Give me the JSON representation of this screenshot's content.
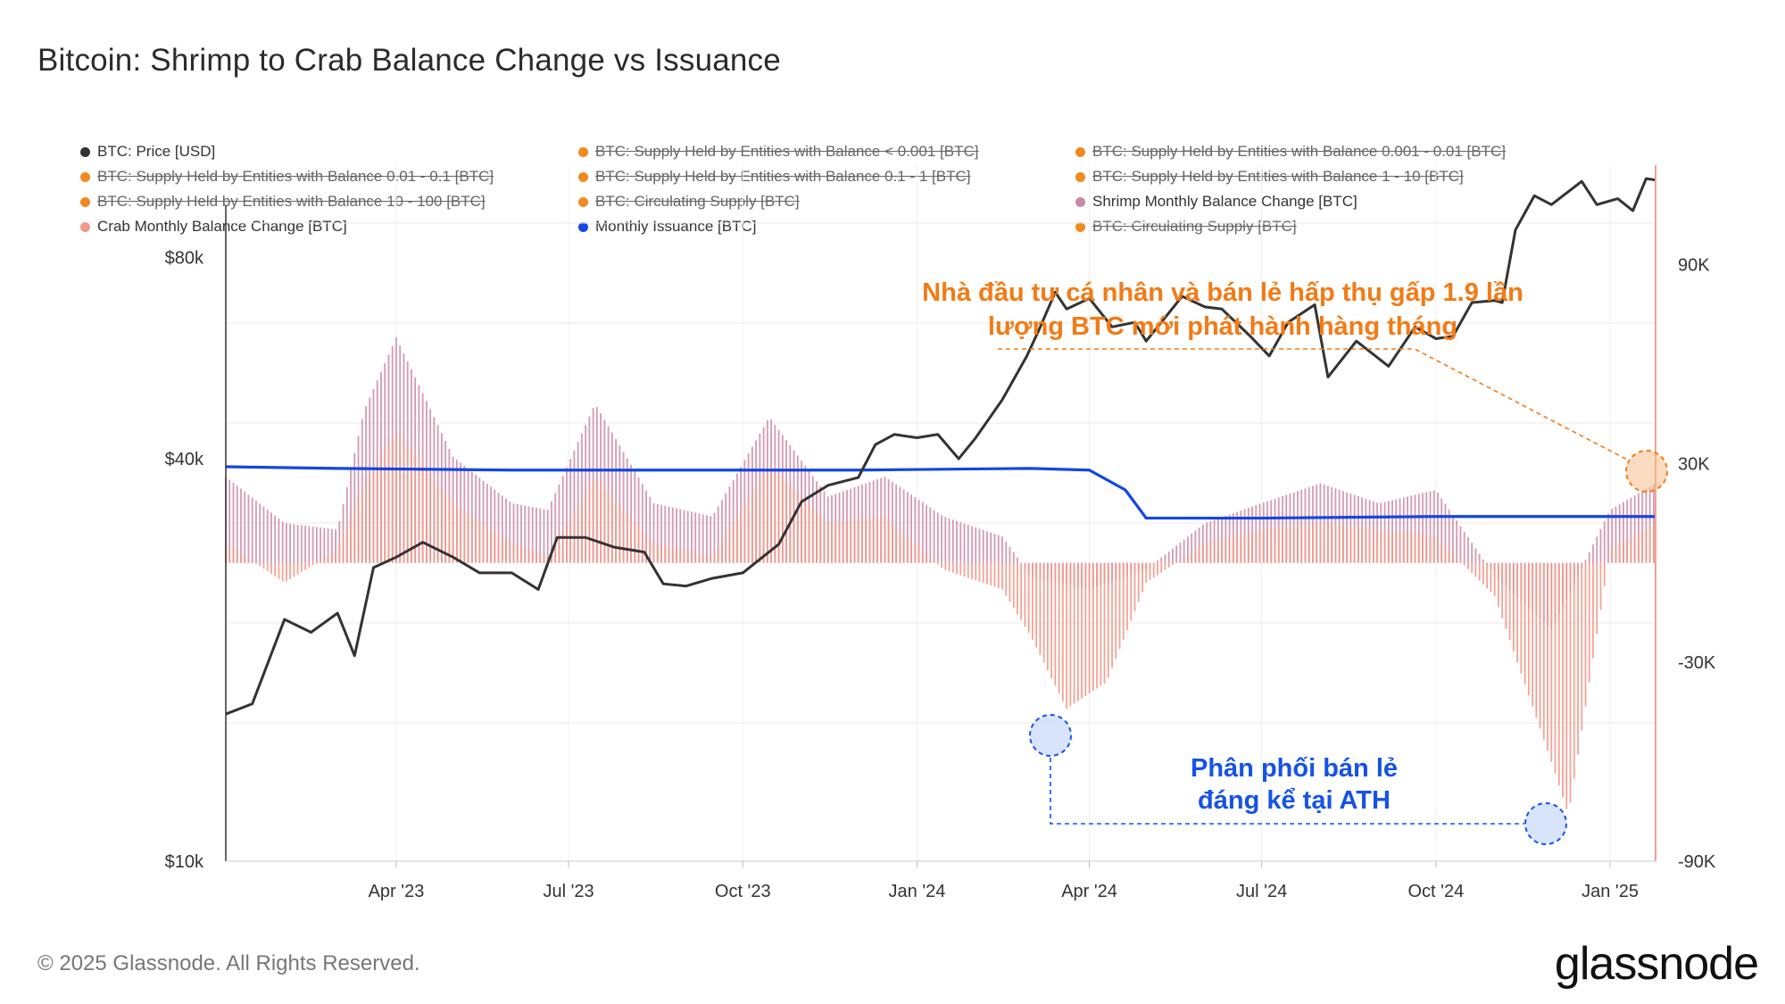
{
  "title": "Bitcoin: Shrimp to Crab Balance Change vs Issuance",
  "footer": {
    "copyright": "© 2025 Glassnode. All Rights Reserved.",
    "brand": "glassnode"
  },
  "legend": [
    {
      "label": "BTC: Price [USD]",
      "color": "#333333",
      "enabled": true
    },
    {
      "label": "BTC: Supply Held by Entities with Balance < 0.001 [BTC]",
      "color": "#f08a1e",
      "enabled": false
    },
    {
      "label": "BTC: Supply Held by Entities with Balance 0.001 - 0.01 [BTC]",
      "color": "#f08a1e",
      "enabled": false
    },
    {
      "label": "BTC: Supply Held by Entities with Balance 0.01 - 0.1 [BTC]",
      "color": "#f08a1e",
      "enabled": false
    },
    {
      "label": "BTC: Supply Held by Entities with Balance 0.1 - 1 [BTC]",
      "color": "#f08a1e",
      "enabled": false
    },
    {
      "label": "BTC: Supply Held by Entities with Balance 1 - 10 [BTC]",
      "color": "#f08a1e",
      "enabled": false
    },
    {
      "label": "BTC: Supply Held by Entities with Balance 10 - 100 [BTC]",
      "color": "#f08a1e",
      "enabled": false
    },
    {
      "label": "BTC: Circulating Supply [BTC]",
      "color": "#f08a1e",
      "enabled": false
    },
    {
      "label": "Shrimp Monthly Balance Change [BTC]",
      "color": "#cc88a6",
      "enabled": true
    },
    {
      "label": "Crab Monthly Balance Change [BTC]",
      "color": "#f2998a",
      "enabled": true
    },
    {
      "label": "Monthly Issuance [BTC]",
      "color": "#1146e8",
      "enabled": true
    },
    {
      "label": "BTC: Circulating Supply [BTC]",
      "color": "#f08a1e",
      "enabled": false
    }
  ],
  "annotations": {
    "orange": {
      "line1": "Nhà đầu tư cá nhân và bán lẻ hấp thụ gấp 1.9 lần",
      "line2": "lượng BTC mới phát hành hàng tháng"
    },
    "blue": {
      "line1": "Phân phối bán lẻ",
      "line2": "đáng kể tại ATH"
    }
  },
  "chart_data": {
    "type": "line",
    "x_axis": {
      "ticks": [
        "Apr '23",
        "Jul '23",
        "Oct '23",
        "Jan '24",
        "Apr '24",
        "Jul '24",
        "Oct '24",
        "Jan '25"
      ],
      "range": [
        "2023-01-01",
        "2025-01-25"
      ]
    },
    "y_axis_left": {
      "label": "",
      "scale": "log",
      "range": [
        10000,
        110000
      ],
      "ticks": [
        {
          "value": 10000,
          "label": "$10k"
        },
        {
          "value": 40000,
          "label": "$40k"
        },
        {
          "value": 80000,
          "label": "$80k"
        }
      ]
    },
    "y_axis_right": {
      "label": "",
      "scale": "linear",
      "range": [
        -90000,
        120000
      ],
      "ticks": [
        {
          "value": 90000,
          "label": "90K"
        },
        {
          "value": 30000,
          "label": "30K"
        },
        {
          "value": -30000,
          "label": "-30K"
        },
        {
          "value": -90000,
          "label": "-90K"
        }
      ]
    },
    "grid": true,
    "series": [
      {
        "name": "BTC: Price [USD]",
        "axis": "left",
        "color": "#333333",
        "style": "line",
        "x": [
          "2023-01-01",
          "2023-01-15",
          "2023-02-01",
          "2023-02-15",
          "2023-03-01",
          "2023-03-10",
          "2023-03-20",
          "2023-04-01",
          "2023-04-15",
          "2023-05-01",
          "2023-05-15",
          "2023-06-01",
          "2023-06-15",
          "2023-06-25",
          "2023-07-10",
          "2023-07-25",
          "2023-08-10",
          "2023-08-20",
          "2023-09-01",
          "2023-09-15",
          "2023-10-01",
          "2023-10-20",
          "2023-11-01",
          "2023-11-15",
          "2023-12-01",
          "2023-12-10",
          "2023-12-20",
          "2024-01-01",
          "2024-01-12",
          "2024-01-23",
          "2024-02-01",
          "2024-02-15",
          "2024-02-28",
          "2024-03-05",
          "2024-03-14",
          "2024-03-20",
          "2024-04-01",
          "2024-04-13",
          "2024-04-25",
          "2024-05-01",
          "2024-05-20",
          "2024-06-01",
          "2024-06-10",
          "2024-06-25",
          "2024-07-05",
          "2024-07-15",
          "2024-07-29",
          "2024-08-05",
          "2024-08-20",
          "2024-09-06",
          "2024-09-20",
          "2024-10-01",
          "2024-10-10",
          "2024-10-20",
          "2024-11-01",
          "2024-11-05",
          "2024-11-12",
          "2024-11-22",
          "2024-12-01",
          "2024-12-17",
          "2024-12-25",
          "2025-01-05",
          "2025-01-13",
          "2025-01-20",
          "2025-01-25"
        ],
        "values": [
          16600,
          17200,
          23000,
          22000,
          23500,
          20300,
          27500,
          28500,
          30000,
          28500,
          27000,
          27000,
          25500,
          30500,
          30500,
          29500,
          29000,
          26000,
          25800,
          26500,
          27000,
          29800,
          34500,
          36500,
          37500,
          42000,
          43500,
          43000,
          43500,
          40000,
          43000,
          49000,
          57000,
          62000,
          71000,
          67000,
          69500,
          63000,
          64000,
          60000,
          70000,
          67500,
          67000,
          61000,
          57000,
          64000,
          68000,
          53000,
          60000,
          55000,
          63000,
          60500,
          61000,
          68500,
          69000,
          68500,
          88000,
          99000,
          96000,
          104000,
          96000,
          98000,
          94000,
          105000,
          104500
        ]
      },
      {
        "name": "Shrimp Monthly Balance Change [BTC]",
        "axis": "right",
        "color": "#cc88a6",
        "style": "bar",
        "x": [
          "2023-01-01",
          "2023-02-01",
          "2023-03-01",
          "2023-03-15",
          "2023-04-01",
          "2023-05-01",
          "2023-06-01",
          "2023-06-20",
          "2023-07-15",
          "2023-08-15",
          "2023-09-15",
          "2023-10-15",
          "2023-11-15",
          "2023-12-15",
          "2024-01-15",
          "2024-02-15",
          "2024-03-01",
          "2024-04-01",
          "2024-05-01",
          "2024-06-01",
          "2024-07-01",
          "2024-08-01",
          "2024-09-01",
          "2024-10-01",
          "2024-11-01",
          "2024-12-01",
          "2025-01-01",
          "2025-01-25"
        ],
        "values": [
          26000,
          12000,
          10000,
          46000,
          68000,
          32000,
          18000,
          16000,
          48000,
          18000,
          14000,
          44000,
          20000,
          26000,
          14000,
          8000,
          -4000,
          -8000,
          -2000,
          12000,
          18000,
          24000,
          18000,
          22000,
          -4000,
          -20000,
          16000,
          24000
        ]
      },
      {
        "name": "Crab Monthly Balance Change [BTC]",
        "axis": "right",
        "color": "#f2998a",
        "style": "bar",
        "x": [
          "2023-01-01",
          "2023-02-01",
          "2023-03-01",
          "2023-03-15",
          "2023-04-01",
          "2023-05-01",
          "2023-06-01",
          "2023-06-20",
          "2023-07-15",
          "2023-08-15",
          "2023-09-15",
          "2023-10-15",
          "2023-11-15",
          "2023-12-15",
          "2024-01-15",
          "2024-02-15",
          "2024-03-01",
          "2024-03-20",
          "2024-04-10",
          "2024-05-01",
          "2024-06-01",
          "2024-07-01",
          "2024-08-01",
          "2024-09-01",
          "2024-10-01",
          "2024-11-01",
          "2024-12-01",
          "2024-12-10",
          "2025-01-01",
          "2025-01-25"
        ],
        "values": [
          6000,
          -6000,
          4000,
          24000,
          40000,
          18000,
          6000,
          2000,
          26000,
          6000,
          2000,
          30000,
          12000,
          14000,
          -2000,
          -8000,
          -22000,
          -44000,
          -36000,
          -6000,
          6000,
          10000,
          12000,
          10000,
          8000,
          -10000,
          -60000,
          -76000,
          4000,
          12000
        ]
      },
      {
        "name": "Monthly Issuance [BTC]",
        "axis": "right",
        "color": "#1146e8",
        "style": "line",
        "x": [
          "2023-01-01",
          "2023-03-01",
          "2023-06-01",
          "2023-09-01",
          "2023-12-01",
          "2024-03-01",
          "2024-04-01",
          "2024-04-20",
          "2024-05-01",
          "2024-07-01",
          "2024-10-01",
          "2025-01-25"
        ],
        "values": [
          29000,
          28500,
          28000,
          28000,
          28000,
          28500,
          28000,
          22000,
          13500,
          13500,
          14000,
          14000
        ]
      }
    ]
  }
}
